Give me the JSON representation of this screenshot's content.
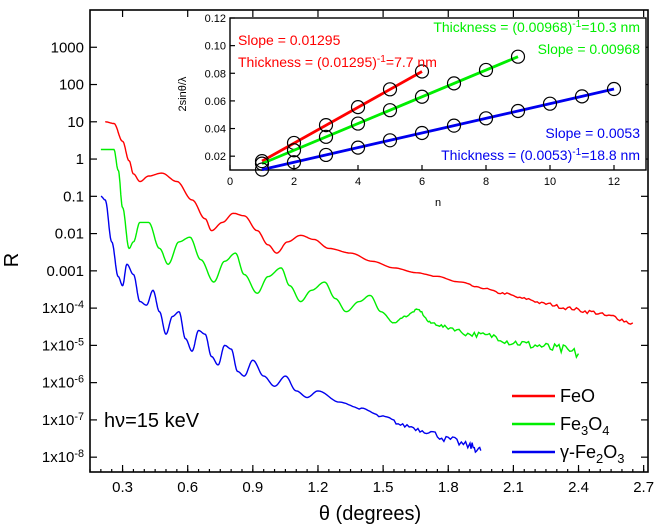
{
  "colors": {
    "feo": "#ff0000",
    "fe3o4": "#00ee00",
    "gfe2o3": "#0000ee",
    "axis": "#000000"
  },
  "chart_data": [
    {
      "type": "line",
      "title": "",
      "xlabel": "θ (degrees)",
      "ylabel": "R",
      "yscale": "log",
      "xlim": [
        0.15,
        2.72
      ],
      "ylim": [
        4e-09,
        10000
      ],
      "x_ticks": [
        "0.3",
        "0.6",
        "0.9",
        "1.2",
        "1.5",
        "1.8",
        "2.1",
        "2.4",
        "2.7"
      ],
      "y_ticks": [
        "1x10-8",
        "1x10-7",
        "1x10-6",
        "1x10-5",
        "1x10-4",
        "0.001",
        "0.01",
        "0.1",
        "1",
        "10",
        "100",
        "1000"
      ],
      "annotation": "hν=15 keV",
      "legend_position": "bottom-right",
      "series": [
        {
          "name": "FeO",
          "color": "#ff0000",
          "x": [
            0.22,
            0.26,
            0.3,
            0.33,
            0.35,
            0.38,
            0.42,
            0.48,
            0.55,
            0.62,
            0.68,
            0.71,
            0.76,
            0.81,
            0.86,
            0.92,
            0.97,
            1.01,
            1.06,
            1.12,
            1.18,
            1.25,
            1.35,
            1.45,
            1.55,
            1.65,
            1.75,
            1.85,
            1.95,
            2.05,
            2.15,
            2.25,
            2.35,
            2.45,
            2.55,
            2.65
          ],
          "y": [
            10,
            9,
            3,
            0.9,
            0.4,
            0.25,
            0.35,
            0.42,
            0.25,
            0.08,
            0.025,
            0.012,
            0.02,
            0.035,
            0.03,
            0.012,
            0.005,
            0.003,
            0.006,
            0.009,
            0.007,
            0.004,
            0.003,
            0.0018,
            0.0012,
            0.0009,
            0.0007,
            0.0005,
            0.00035,
            0.00025,
            0.00018,
            0.00013,
            0.0001,
            8e-05,
            6e-05,
            4e-05
          ]
        },
        {
          "name": "Fe3O4",
          "color": "#00ee00",
          "x": [
            0.2,
            0.26,
            0.28,
            0.3,
            0.33,
            0.35,
            0.38,
            0.42,
            0.47,
            0.51,
            0.56,
            0.61,
            0.66,
            0.72,
            0.77,
            0.82,
            0.86,
            0.92,
            0.97,
            1.03,
            1.07,
            1.12,
            1.17,
            1.23,
            1.28,
            1.33,
            1.39,
            1.44,
            1.49,
            1.55,
            1.6,
            1.66,
            1.72,
            1.8,
            1.9,
            2.0,
            2.1,
            2.2,
            2.3,
            2.4
          ],
          "y": [
            1.8,
            1.8,
            0.5,
            0.05,
            0.004,
            0.006,
            0.02,
            0.02,
            0.004,
            0.0015,
            0.006,
            0.008,
            0.002,
            0.0005,
            0.0018,
            0.003,
            0.0008,
            0.00025,
            0.0007,
            0.0012,
            0.0004,
            0.00015,
            0.0003,
            0.0005,
            0.00018,
            8e-05,
            0.00015,
            0.00022,
            8e-05,
            4e-05,
            6e-05,
            9e-05,
            4e-05,
            3e-05,
            2e-05,
            1.8e-05,
            1.2e-05,
            1e-05,
            8e-06,
            6e-06
          ]
        },
        {
          "name": "γ-Fe2O3",
          "color": "#0000ee",
          "x": [
            0.2,
            0.22,
            0.25,
            0.28,
            0.3,
            0.32,
            0.35,
            0.38,
            0.41,
            0.44,
            0.47,
            0.5,
            0.53,
            0.56,
            0.59,
            0.62,
            0.65,
            0.68,
            0.71,
            0.74,
            0.77,
            0.8,
            0.83,
            0.86,
            0.9,
            0.95,
            1.0,
            1.05,
            1.1,
            1.15,
            1.2,
            1.3,
            1.4,
            1.5,
            1.6,
            1.7,
            1.8,
            1.9,
            1.95
          ],
          "y": [
            0.1,
            0.08,
            0.006,
            0.0007,
            0.0004,
            0.0015,
            0.0008,
            0.00015,
            0.00012,
            0.0003,
            8e-05,
            2e-05,
            6e-05,
            8e-05,
            1.5e-05,
            7e-06,
            2.5e-05,
            2e-05,
            5e-06,
            3e-06,
            1e-05,
            8e-06,
            2e-06,
            1.5e-06,
            4e-06,
            1.5e-06,
            8e-07,
            1.5e-06,
            6e-07,
            4e-07,
            6e-07,
            3e-07,
            2e-07,
            1.2e-07,
            7e-08,
            5e-08,
            3e-08,
            2e-08,
            1.5e-08
          ]
        }
      ]
    },
    {
      "type": "scatter",
      "title": "",
      "xlabel": "n",
      "ylabel": "2sinθ/λ",
      "xlim": [
        0,
        13
      ],
      "ylim": [
        0.01,
        0.12
      ],
      "x_ticks": [
        "0",
        "2",
        "4",
        "6",
        "8",
        "10",
        "12"
      ],
      "y_ticks": [
        "0.02",
        "0.04",
        "0.06",
        "0.08",
        "0.10",
        "0.12"
      ],
      "annotations": [
        {
          "series": "FeO",
          "lines": [
            "Slope = 0.01295",
            "Thickness = (0.01295)-1=7.7 nm"
          ]
        },
        {
          "series": "Fe3O4",
          "lines": [
            "Thickness = (0.00968)-1=10.3 nm",
            "Slope = 0.00968"
          ]
        },
        {
          "series": "γ-Fe2O3",
          "lines": [
            "Slope = 0.0053",
            "Thickness = (0.0053)-1=18.8 nm"
          ]
        }
      ],
      "series": [
        {
          "name": "FeO",
          "color": "#ff0000",
          "x": [
            1,
            2,
            3,
            4,
            5,
            6
          ],
          "y": [
            0.0164,
            0.0296,
            0.0425,
            0.0555,
            0.0684,
            0.0813
          ]
        },
        {
          "name": "Fe3O4",
          "color": "#00ee00",
          "x": [
            1,
            2,
            3,
            4,
            5,
            6,
            7,
            8,
            9
          ],
          "y": [
            0.0146,
            0.0243,
            0.034,
            0.0436,
            0.0533,
            0.063,
            0.0727,
            0.0824,
            0.092
          ]
        },
        {
          "name": "γ-Fe2O3",
          "color": "#0000ee",
          "x": [
            1,
            2,
            3,
            4,
            5,
            6,
            7,
            8,
            9,
            10,
            11,
            12
          ],
          "y": [
            0.0103,
            0.0156,
            0.0209,
            0.0262,
            0.0315,
            0.0368,
            0.0421,
            0.0474,
            0.0527,
            0.058,
            0.0633,
            0.0686
          ]
        }
      ]
    }
  ]
}
